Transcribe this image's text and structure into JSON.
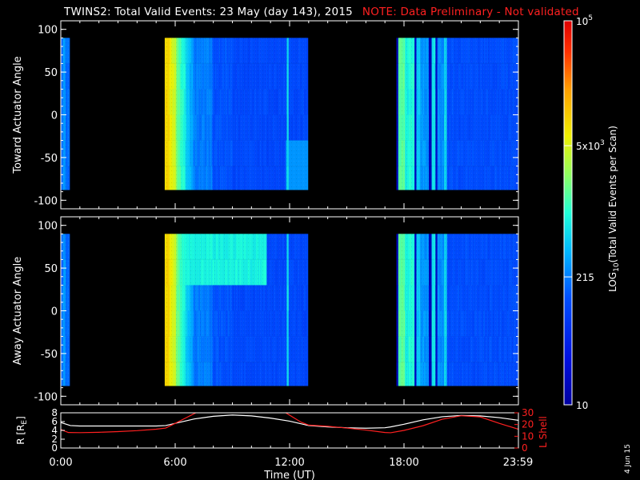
{
  "header": {
    "title": "TWINS2: Total Valid Events: 23 May (day 143), 2015",
    "note": "NOTE: Data Preliminary - Not validated"
  },
  "date_stamp": "4 Jun 15",
  "colors": {
    "background": "#000000",
    "note": "#ff2020",
    "r_line": "#ffffff",
    "l_shell_line": "#ff2020"
  },
  "chart_data": [
    {
      "type": "heatmap",
      "panel": "toward",
      "ylabel": "Toward Actuator Angle",
      "ylim": [
        -110,
        110
      ],
      "yticks": [
        "100",
        "50",
        "0",
        "-50",
        "-100"
      ],
      "xlim": [
        0,
        24
      ],
      "data_angle_range": [
        -88,
        90
      ],
      "segments": [
        [
          0.0,
          0.45
        ],
        [
          5.45,
          12.95
        ],
        [
          17.6,
          23.98
        ]
      ],
      "note": "event counts on log color scale"
    },
    {
      "type": "heatmap",
      "panel": "away",
      "ylabel": "Away Actuator Angle",
      "ylim": [
        -110,
        110
      ],
      "yticks": [
        "100",
        "50",
        "0",
        "-50",
        "-100"
      ],
      "xlim": [
        0,
        24
      ],
      "data_angle_range": [
        -88,
        90
      ],
      "segments": [
        [
          0.0,
          0.45
        ],
        [
          5.45,
          12.95
        ],
        [
          17.6,
          23.98
        ]
      ]
    },
    {
      "type": "line",
      "panel": "orbit",
      "ylabel": "R [RE]",
      "ylabel_parts": {
        "main": "R [R",
        "sub": "E",
        "close": "]"
      },
      "ylim": [
        0,
        8
      ],
      "yticks": [
        "8",
        "6",
        "4",
        "2",
        "0"
      ],
      "y2label": "L Shell",
      "y2lim": [
        0,
        30
      ],
      "y2ticks": [
        "30",
        "20",
        "10",
        "0"
      ],
      "xlabel": "Time (UT)",
      "xticks": [
        "0:00",
        "6:00",
        "12:00",
        "18:00",
        "23:59"
      ],
      "xlim": [
        0,
        24
      ],
      "series": [
        {
          "color": "white",
          "axis": "left",
          "x": [
            0,
            0.5,
            1,
            2,
            3,
            4,
            5,
            5.5,
            6,
            7,
            8,
            9,
            10,
            11,
            12,
            12.5,
            13,
            14,
            15,
            16,
            17,
            17.3,
            18,
            19,
            20,
            21,
            22,
            23,
            24
          ],
          "y": [
            5.8,
            5.1,
            5.0,
            5.0,
            5.0,
            5.0,
            5.0,
            5.1,
            5.6,
            6.6,
            7.2,
            7.5,
            7.3,
            6.8,
            6.1,
            5.6,
            5.1,
            4.8,
            4.6,
            4.5,
            4.6,
            4.8,
            5.4,
            6.4,
            7.1,
            7.4,
            7.3,
            6.9,
            6.3
          ]
        },
        {
          "color": "red",
          "axis": "right",
          "x": [
            0,
            0.4,
            1,
            2,
            3,
            4,
            5,
            5.5,
            6,
            6.6,
            7.2,
            11.7,
            12.2,
            12.6,
            13,
            14,
            15,
            16,
            17,
            17.3,
            18,
            19,
            20,
            21,
            22,
            23,
            24
          ],
          "y": [
            15.8,
            13.2,
            13.1,
            13.4,
            14.0,
            14.8,
            16.0,
            17.0,
            21.0,
            26.0,
            31.0,
            31.0,
            26.0,
            22.0,
            19.5,
            18.5,
            17.0,
            15.3,
            13.2,
            13.0,
            15.0,
            19.0,
            24.5,
            27.5,
            26.5,
            21.0,
            16.0
          ]
        }
      ]
    },
    {
      "type": "colorbar",
      "label": "LOG10(Total Valid Events per Scan)",
      "label_parts": {
        "pre": "LOG",
        "sub": "10",
        "post": "(Total Valid Events per Scan)"
      },
      "scale": "log",
      "range": [
        10,
        100000
      ],
      "ticks": [
        {
          "value": 100000,
          "base": "10",
          "exp": "5"
        },
        {
          "value": 5000,
          "base": "5x10",
          "exp": "3"
        },
        {
          "value": 215,
          "base": "215",
          "exp": ""
        },
        {
          "value": 10,
          "base": "10",
          "exp": ""
        }
      ]
    }
  ]
}
